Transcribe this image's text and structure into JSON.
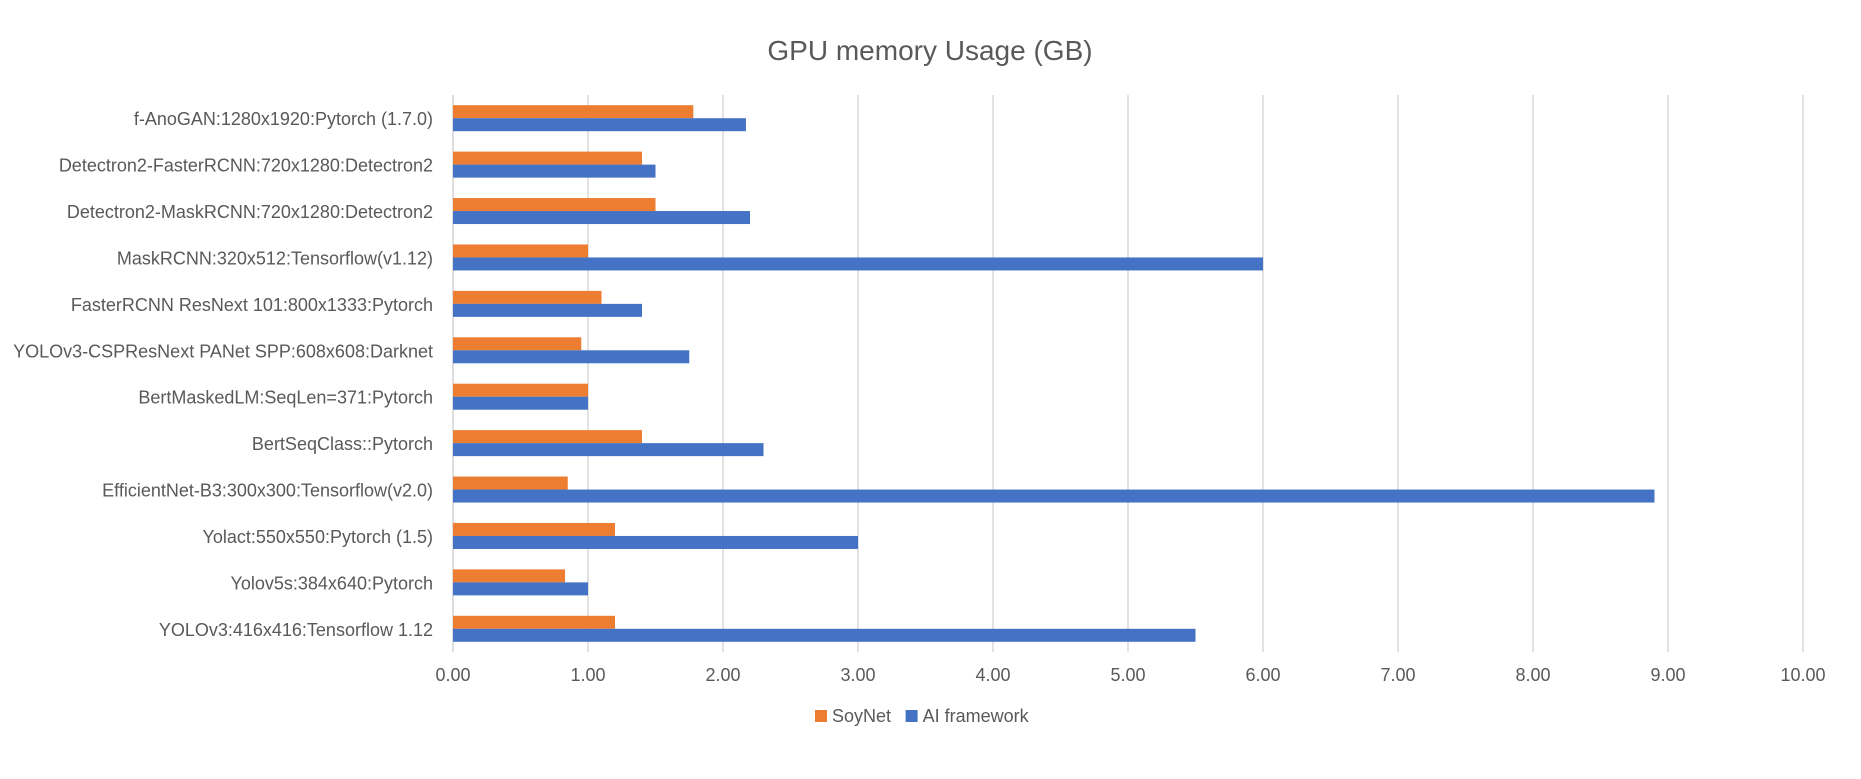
{
  "chart_data": {
    "type": "bar",
    "orientation": "horizontal",
    "title": "GPU memory Usage (GB)",
    "xlabel": "",
    "ylabel": "",
    "xlim": [
      0,
      10
    ],
    "x_tick_step": 1,
    "x_tick_labels": [
      "0.00",
      "1.00",
      "2.00",
      "3.00",
      "4.00",
      "5.00",
      "6.00",
      "7.00",
      "8.00",
      "9.00",
      "10.00"
    ],
    "grid": "vertical",
    "legend_position": "bottom-center",
    "categories": [
      "f-AnoGAN:1280x1920:Pytorch (1.7.0)",
      "Detectron2-FasterRCNN:720x1280:Detectron2",
      "Detectron2-MaskRCNN:720x1280:Detectron2",
      "MaskRCNN:320x512:Tensorflow(v1.12)",
      "FasterRCNN ResNext 101:800x1333:Pytorch",
      "YOLOv3-CSPResNext PANet SPP:608x608:Darknet",
      "BertMaskedLM:SeqLen=371:Pytorch",
      "BertSeqClass::Pytorch",
      "EfficientNet-B3:300x300:Tensorflow(v2.0)",
      "Yolact:550x550:Pytorch (1.5)",
      "Yolov5s:384x640:Pytorch",
      "YOLOv3:416x416:Tensorflow 1.12"
    ],
    "series": [
      {
        "name": "SoyNet",
        "color": "#ED7D31",
        "values": [
          1.78,
          1.4,
          1.5,
          1.0,
          1.1,
          0.95,
          1.0,
          1.4,
          0.85,
          1.2,
          0.83,
          1.2
        ]
      },
      {
        "name": "AI framework",
        "color": "#4472C4",
        "values": [
          2.17,
          1.5,
          2.2,
          6.0,
          1.4,
          1.75,
          1.0,
          2.3,
          8.9,
          3.0,
          1.0,
          5.5
        ]
      }
    ]
  }
}
